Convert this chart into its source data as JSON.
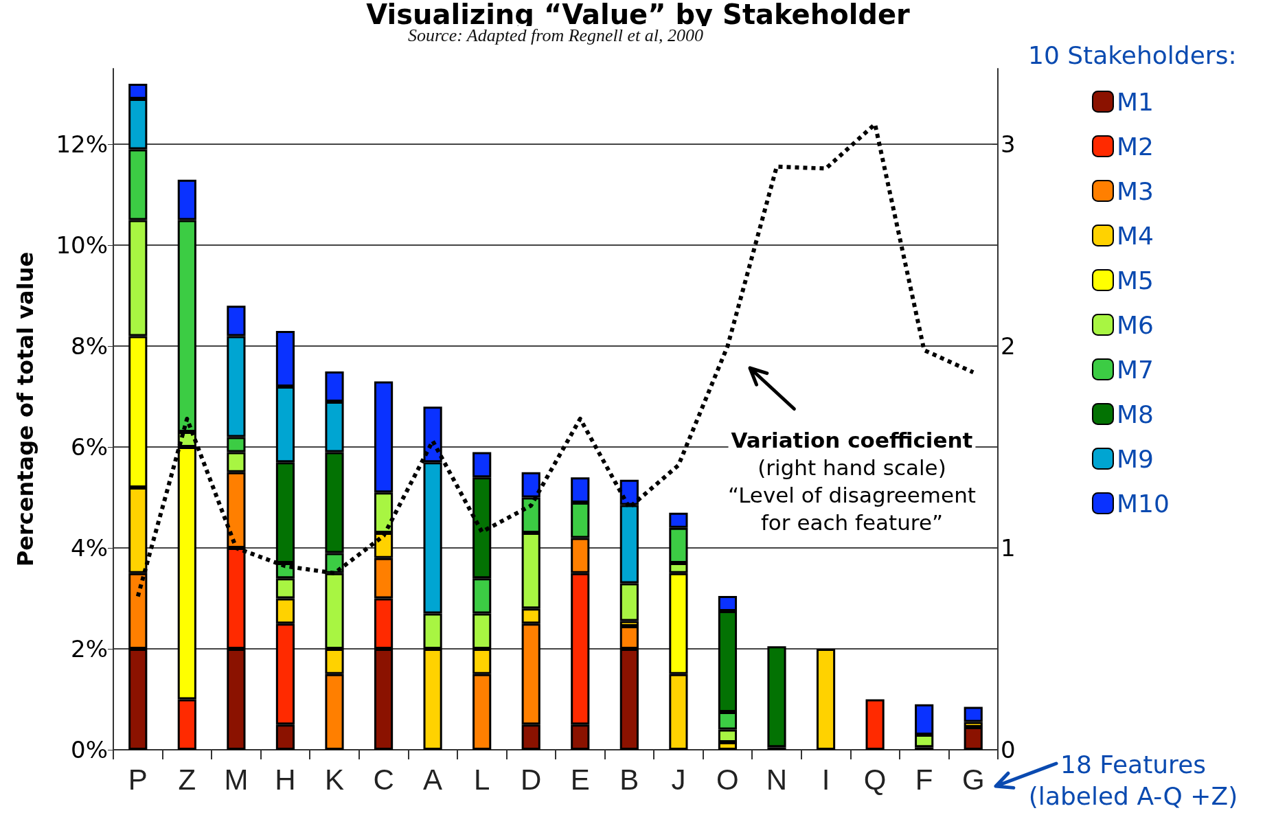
{
  "chart_data": {
    "type": "bar",
    "title": "Visualizing “Value” by Stakeholder",
    "ylabel": "Percentage of total value",
    "legend_title": "10 Stakeholders:",
    "annotations": [
      "Source: Adapted from Regnell et al, 2000",
      "Variation coefficient\n(right hand scale)\n“Level of disagreement\nfor each feature”",
      "18 Features\n(labeled A-Q +Z)"
    ],
    "categories": [
      "P",
      "Z",
      "M",
      "H",
      "K",
      "C",
      "A",
      "L",
      "D",
      "E",
      "B",
      "J",
      "O",
      "N",
      "I",
      "Q",
      "F",
      "G"
    ],
    "stacked": true,
    "grid": "y",
    "legend": "right",
    "ylim": [
      0,
      13.5
    ],
    "yticks": [
      {
        "value": 0,
        "label": "0%"
      },
      {
        "value": 2,
        "label": "2%"
      },
      {
        "value": 4,
        "label": "4%"
      },
      {
        "value": 6,
        "label": "6%"
      },
      {
        "value": 8,
        "label": "8%"
      },
      {
        "value": 10,
        "label": "10%"
      },
      {
        "value": 12,
        "label": "12%"
      }
    ],
    "y2lim": [
      0,
      3.375
    ],
    "y2ticks": [
      0,
      1,
      2,
      3
    ],
    "series": [
      {
        "name": "M1",
        "color": "#8b1200",
        "values": [
          2.0,
          null,
          2.0,
          0.5,
          null,
          2.0,
          null,
          null,
          0.5,
          0.5,
          2.0,
          null,
          null,
          null,
          null,
          null,
          null,
          0.45
        ]
      },
      {
        "name": "M2",
        "color": "#ff2a00",
        "values": [
          null,
          1.0,
          2.0,
          2.0,
          null,
          1.0,
          null,
          null,
          null,
          3.0,
          null,
          null,
          null,
          null,
          null,
          1.0,
          null,
          null
        ]
      },
      {
        "name": "M3",
        "color": "#ff7f00",
        "values": [
          1.5,
          null,
          1.5,
          null,
          1.5,
          0.8,
          null,
          1.5,
          2.0,
          0.7,
          0.45,
          null,
          null,
          null,
          null,
          null,
          null,
          null
        ]
      },
      {
        "name": "M4",
        "color": "#ffd200",
        "values": [
          1.7,
          null,
          null,
          0.5,
          0.5,
          0.5,
          2.0,
          0.5,
          0.3,
          null,
          0.1,
          1.5,
          0.15,
          null,
          2.0,
          null,
          0.05,
          0.1
        ]
      },
      {
        "name": "M5",
        "color": "#ffff00",
        "values": [
          3.0,
          5.0,
          null,
          null,
          null,
          null,
          null,
          null,
          null,
          null,
          null,
          2.0,
          null,
          null,
          null,
          null,
          null,
          null
        ]
      },
      {
        "name": "M6",
        "color": "#a8f542",
        "values": [
          2.3,
          0.3,
          0.4,
          0.4,
          1.5,
          0.8,
          0.7,
          0.7,
          1.5,
          null,
          0.75,
          0.2,
          0.25,
          0.05,
          null,
          null,
          0.25,
          null
        ]
      },
      {
        "name": "M7",
        "color": "#3ccc44",
        "values": [
          1.4,
          4.2,
          0.3,
          0.3,
          0.4,
          null,
          null,
          0.7,
          0.7,
          0.7,
          null,
          0.7,
          0.35,
          null,
          null,
          null,
          null,
          null
        ]
      },
      {
        "name": "M8",
        "color": "#037203",
        "values": [
          null,
          null,
          null,
          2.0,
          2.0,
          null,
          null,
          2.0,
          null,
          null,
          null,
          null,
          2.0,
          2.0,
          null,
          null,
          null,
          null
        ]
      },
      {
        "name": "M9",
        "color": "#00a5d2",
        "values": [
          1.0,
          null,
          2.0,
          1.5,
          1.0,
          null,
          3.0,
          null,
          null,
          null,
          1.55,
          null,
          null,
          null,
          null,
          null,
          null,
          null
        ]
      },
      {
        "name": "M10",
        "color": "#0a32ff",
        "values": [
          0.3,
          0.8,
          0.6,
          1.1,
          0.6,
          2.2,
          1.1,
          0.5,
          0.5,
          0.5,
          0.5,
          0.3,
          0.3,
          null,
          null,
          null,
          0.6,
          0.3
        ]
      },
      {
        "type": "line",
        "axis": "y2",
        "color": "#000000",
        "line_style": "dotted",
        "marker": "none",
        "values": [
          0.76,
          1.64,
          1.0,
          0.91,
          0.875,
          1.06,
          1.53,
          1.08,
          1.21,
          1.64,
          1.2,
          1.41,
          2.0,
          2.89,
          2.88,
          3.1,
          1.98,
          1.87
        ]
      }
    ]
  }
}
